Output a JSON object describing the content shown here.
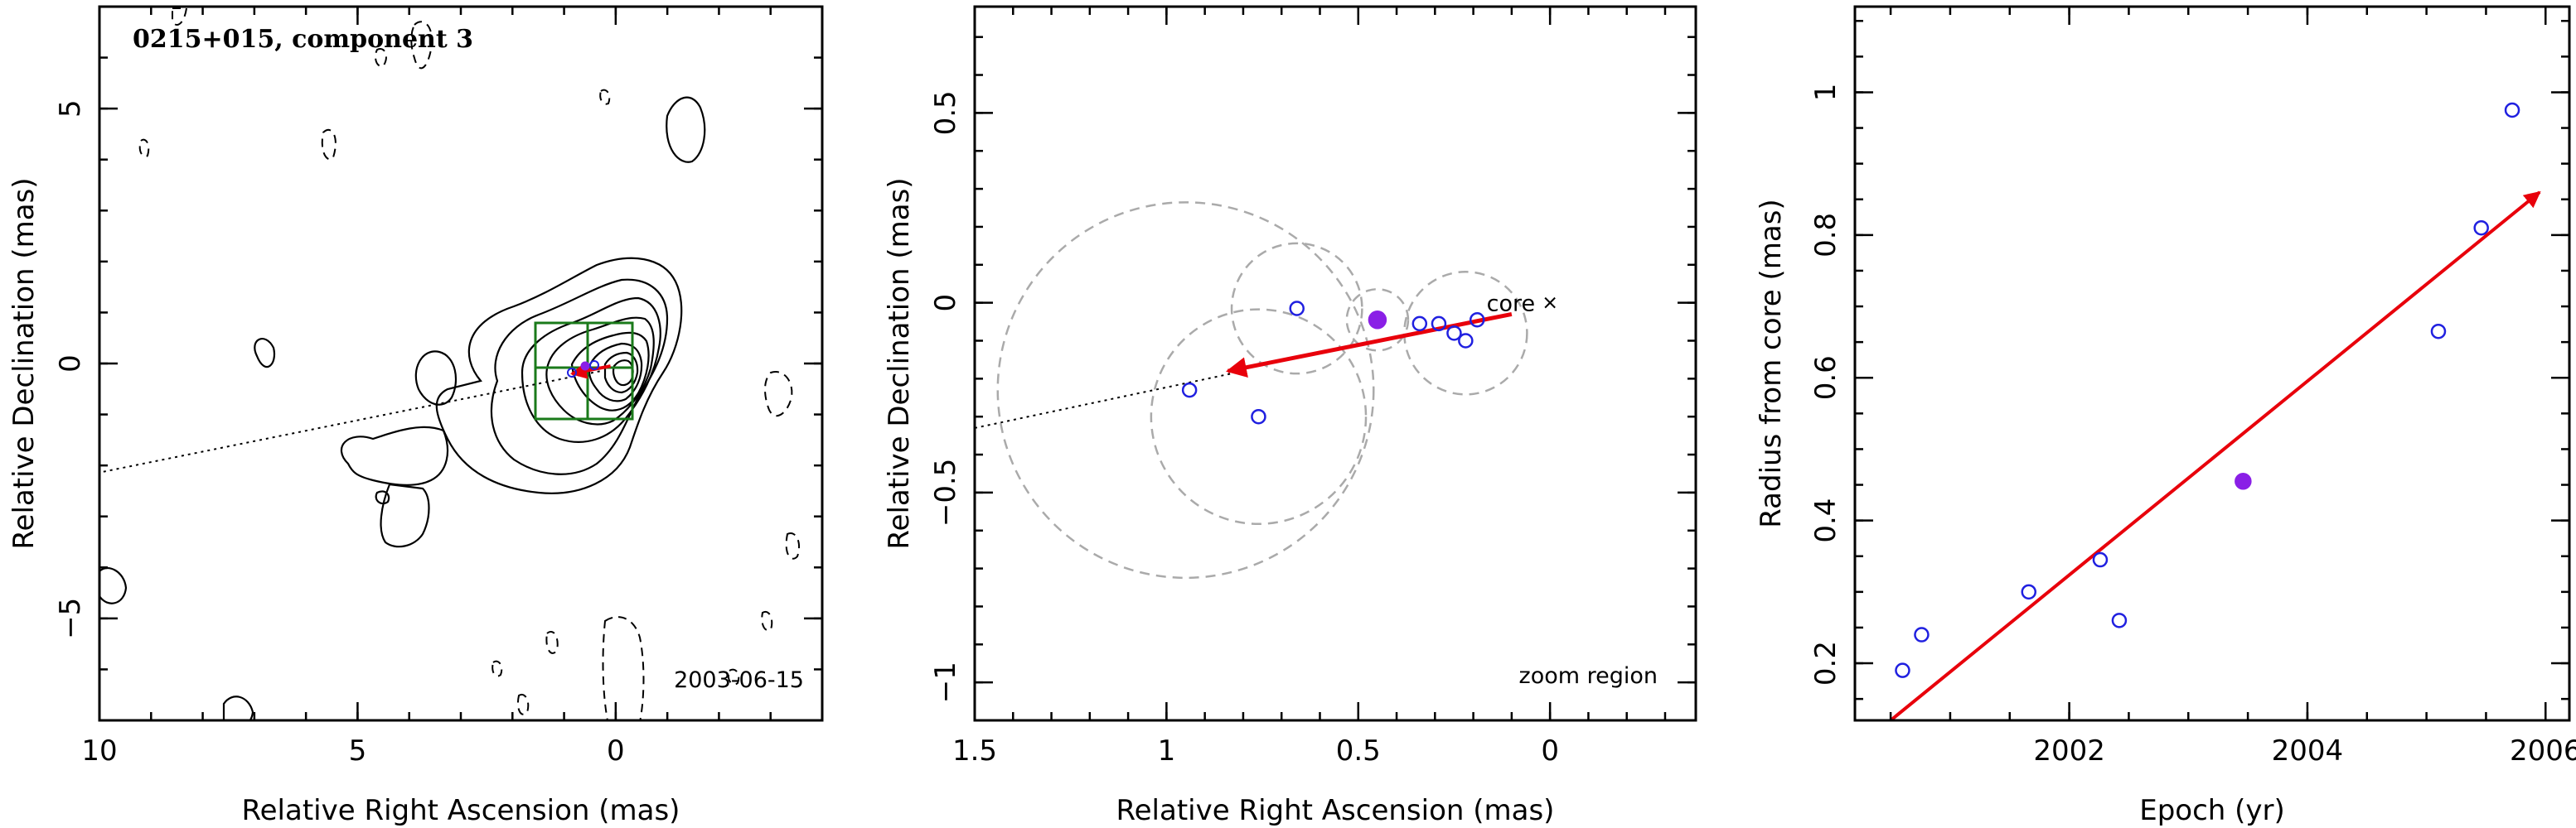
{
  "chart_data": [
    {
      "type": "contour",
      "title": "0215+015, component 3",
      "epoch_label": "2003-06-15",
      "xlabel": "Relative Right Ascension (mas)",
      "ylabel": "Relative Declination (mas)",
      "xlim": [
        10,
        -4
      ],
      "ylim": [
        -7,
        7
      ],
      "xticks": [
        10,
        5,
        0
      ],
      "yticks": [
        5,
        0,
        -5
      ],
      "xtick_labels": [
        "10",
        "5",
        "0"
      ],
      "ytick_labels": [
        "5",
        "0",
        "−5"
      ],
      "colors": {
        "contour": "#000000",
        "box": "#1a7a1a",
        "arrow": "#e8000b",
        "track": "#000000"
      },
      "jet_line": {
        "from": [
          10.3,
          -2.2
        ],
        "to": [
          0.3,
          -0.15
        ]
      },
      "motion_arrow": {
        "from": [
          0.1,
          -0.05
        ],
        "to": [
          0.85,
          -0.2
        ]
      },
      "zoom_box": {
        "x": [
          -0.5,
          1.5
        ],
        "y": [
          -1.1,
          0.8
        ]
      },
      "zoom_box_gridlines": {
        "x": [
          0.5
        ],
        "y": [
          -0.1
        ]
      }
    },
    {
      "type": "scatter",
      "annotation": "zoom region",
      "core_label": "core",
      "xlabel": "Relative Right Ascension (mas)",
      "ylabel": "Relative Declination (mas)",
      "xlim": [
        1.5,
        -0.38
      ],
      "ylim": [
        -1.1,
        0.78
      ],
      "xticks": [
        1.5,
        1,
        0.5,
        0
      ],
      "yticks": [
        0.5,
        0,
        -0.5,
        -1
      ],
      "xtick_labels": [
        "1.5",
        "1",
        "0.5",
        "0"
      ],
      "ytick_labels": [
        "0.5",
        "0",
        "−0.5",
        "−1"
      ],
      "colors": {
        "open_point": "#2020e0",
        "filled_point": "#8a1fe6",
        "arrow": "#e8000b",
        "circle": "#aaaaaa"
      },
      "points": [
        {
          "x": 0.94,
          "y": -0.23,
          "filled": false
        },
        {
          "x": 0.76,
          "y": -0.3,
          "filled": false
        },
        {
          "x": 0.66,
          "y": -0.015,
          "filled": false
        },
        {
          "x": 0.45,
          "y": -0.045,
          "filled": true
        },
        {
          "x": 0.34,
          "y": -0.055,
          "filled": false
        },
        {
          "x": 0.29,
          "y": -0.055,
          "filled": false
        },
        {
          "x": 0.25,
          "y": -0.08,
          "filled": false
        },
        {
          "x": 0.22,
          "y": -0.1,
          "filled": false
        },
        {
          "x": 0.19,
          "y": -0.045,
          "filled": false
        }
      ],
      "circles": [
        {
          "x": 0.95,
          "y": -0.23,
          "r": 0.49
        },
        {
          "x": 0.76,
          "y": -0.3,
          "r": 0.28
        },
        {
          "x": 0.66,
          "y": -0.015,
          "r": 0.17
        },
        {
          "x": 0.45,
          "y": -0.045,
          "r": 0.08
        },
        {
          "x": 0.22,
          "y": -0.08,
          "r": 0.16
        }
      ],
      "core": {
        "x": 0,
        "y": 0
      },
      "jet_line": {
        "from": [
          1.5,
          -0.33
        ],
        "to": [
          0.8,
          -0.18
        ]
      },
      "motion_arrow": {
        "from": [
          0.1,
          -0.03
        ],
        "to": [
          0.84,
          -0.18
        ]
      }
    },
    {
      "type": "scatter",
      "xlabel": "Epoch (yr)",
      "ylabel": "Radius from core (mas)",
      "xlim": [
        2000.2,
        2006.2
      ],
      "ylim": [
        0.12,
        1.12
      ],
      "xticks": [
        2002,
        2004,
        2006
      ],
      "yticks": [
        0.2,
        0.4,
        0.6,
        0.8,
        1
      ],
      "xtick_labels": [
        "2002",
        "2004",
        "2006"
      ],
      "ytick_labels": [
        "0.2",
        "0.4",
        "0.6",
        "0.8",
        "1"
      ],
      "colors": {
        "open_point": "#2020e0",
        "filled_point": "#8a1fe6",
        "fit": "#e8000b"
      },
      "points": [
        {
          "x": 2000.6,
          "y": 0.19,
          "filled": false
        },
        {
          "x": 2000.76,
          "y": 0.24,
          "filled": false
        },
        {
          "x": 2001.66,
          "y": 0.3,
          "filled": false
        },
        {
          "x": 2002.26,
          "y": 0.345,
          "filled": false
        },
        {
          "x": 2002.42,
          "y": 0.26,
          "filled": false
        },
        {
          "x": 2003.46,
          "y": 0.455,
          "filled": true
        },
        {
          "x": 2005.1,
          "y": 0.665,
          "filled": false
        },
        {
          "x": 2005.46,
          "y": 0.81,
          "filled": false
        },
        {
          "x": 2005.72,
          "y": 0.975,
          "filled": false
        }
      ],
      "fit_arrow": {
        "from": [
          2000.5,
          0.12
        ],
        "to": [
          2005.95,
          0.86
        ]
      }
    }
  ]
}
